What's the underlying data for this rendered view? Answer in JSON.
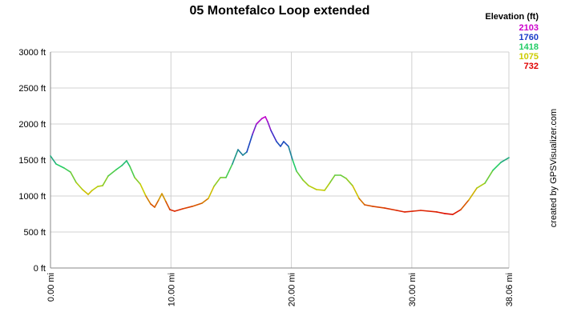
{
  "chart_data": {
    "type": "line",
    "title": "05 Montefalco Loop extended",
    "legend_title": "Elevation (ft)",
    "credit": "created by GPSVisualizer.com",
    "color_scale": [
      {
        "value": 2103,
        "color": "#cc00cc"
      },
      {
        "value": 1760,
        "color": "#1a3cc8"
      },
      {
        "value": 1418,
        "color": "#22cc66"
      },
      {
        "value": 1075,
        "color": "#cccc00"
      },
      {
        "value": 732,
        "color": "#e00000"
      }
    ],
    "xlim": [
      0,
      38.06
    ],
    "ylim": [
      0,
      3000
    ],
    "xticks": [
      {
        "value": 0,
        "label": "0.00 mi"
      },
      {
        "value": 10,
        "label": "10.00 mi"
      },
      {
        "value": 20,
        "label": "20.00 mi"
      },
      {
        "value": 30,
        "label": "30.00 mi"
      },
      {
        "value": 38.06,
        "label": "38.06 mi"
      }
    ],
    "yticks": [
      {
        "value": 0,
        "label": "0 ft"
      },
      {
        "value": 500,
        "label": "500 ft"
      },
      {
        "value": 1000,
        "label": "1000 ft"
      },
      {
        "value": 1500,
        "label": "1500 ft"
      },
      {
        "value": 2000,
        "label": "2000 ft"
      },
      {
        "value": 2500,
        "label": "2500 ft"
      },
      {
        "value": 3000,
        "label": "3000 ft"
      }
    ],
    "grid": true,
    "x": [
      0,
      0.47,
      1.13,
      1.66,
      2.13,
      2.66,
      3.13,
      3.46,
      3.93,
      4.33,
      4.79,
      5.46,
      5.92,
      6.32,
      6.59,
      6.99,
      7.45,
      7.92,
      8.32,
      8.65,
      8.98,
      9.25,
      9.58,
      9.91,
      10.31,
      10.98,
      11.78,
      12.58,
      13.11,
      13.57,
      14.11,
      14.57,
      15.1,
      15.57,
      15.97,
      16.3,
      16.77,
      17.1,
      17.57,
      17.84,
      18.03,
      18.3,
      18.77,
      19.1,
      19.36,
      19.76,
      20.1,
      20.43,
      20.96,
      21.43,
      22.09,
      22.76,
      23.22,
      23.62,
      24.09,
      24.55,
      25.08,
      25.62,
      26.08,
      26.75,
      27.75,
      28.75,
      29.41,
      30.08,
      30.74,
      32.08,
      32.74,
      33.4,
      34.07,
      34.73,
      35.4,
      36.07,
      36.73,
      37.4,
      38.06
    ],
    "values": [
      1556,
      1444,
      1389,
      1333,
      1189,
      1089,
      1022,
      1078,
      1133,
      1144,
      1278,
      1367,
      1422,
      1489,
      1411,
      1256,
      1167,
      1000,
      889,
      844,
      944,
      1033,
      922,
      811,
      789,
      822,
      856,
      900,
      967,
      1133,
      1256,
      1256,
      1444,
      1644,
      1567,
      1611,
      1856,
      2000,
      2078,
      2100,
      2033,
      1911,
      1756,
      1689,
      1756,
      1689,
      1500,
      1344,
      1222,
      1144,
      1089,
      1078,
      1189,
      1289,
      1289,
      1244,
      1144,
      967,
      878,
      856,
      833,
      800,
      778,
      789,
      800,
      778,
      756,
      744,
      811,
      944,
      1111,
      1178,
      1356,
      1467,
      1533
    ]
  }
}
